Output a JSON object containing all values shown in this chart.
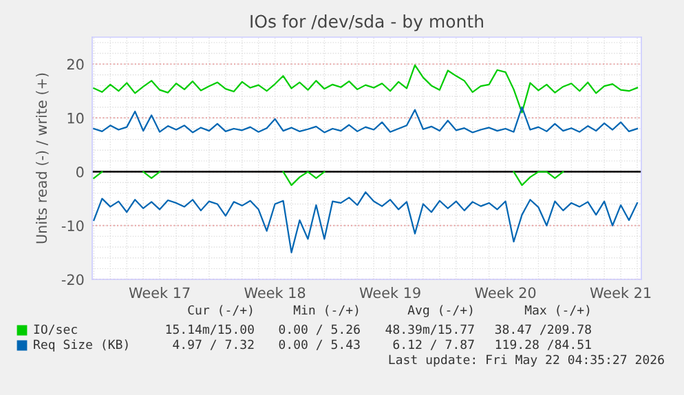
{
  "chart_data": {
    "type": "line",
    "title": "IOs for /dev/sda - by month",
    "ylabel": "Units read (-) / write (+)",
    "categories": [
      null,
      null,
      null,
      null,
      null,
      null,
      null,
      null,
      "Week 17",
      null,
      null,
      null,
      null,
      null,
      null,
      null,
      null,
      null,
      null,
      null,
      null,
      null,
      "Week 18",
      null,
      null,
      null,
      null,
      null,
      null,
      null,
      null,
      null,
      null,
      null,
      null,
      null,
      "Week 19",
      null,
      null,
      null,
      null,
      null,
      null,
      null,
      null,
      null,
      null,
      null,
      null,
      null,
      "Week 20",
      null,
      null,
      null,
      null,
      null,
      null,
      null,
      null,
      null,
      null,
      null,
      null,
      null,
      "Week 21",
      null,
      null
    ],
    "series": [
      {
        "name": "IO/sec",
        "color": "#00cc00",
        "values": [
          15.5,
          14.8,
          16.2,
          15.0,
          16.5,
          14.6,
          15.8,
          16.9,
          15.2,
          14.7,
          16.4,
          15.3,
          16.8,
          15.1,
          15.9,
          16.6,
          15.4,
          14.9,
          16.7,
          15.6,
          16.1,
          15.0,
          16.3,
          17.8,
          15.5,
          16.6,
          15.2,
          16.9,
          15.4,
          16.2,
          15.7,
          16.8,
          15.3,
          16.1,
          15.6,
          16.4,
          15.0,
          16.7,
          15.5,
          19.8,
          17.5,
          16.0,
          15.2,
          18.8,
          17.8,
          16.9,
          14.8,
          15.9,
          16.2,
          18.9,
          18.5,
          15.3,
          11.0,
          16.5,
          15.1,
          16.2,
          14.7,
          15.8,
          16.4,
          15.0,
          16.6,
          14.6,
          15.9,
          16.3,
          15.2,
          15.0,
          15.6
        ]
      },
      {
        "color": "#00cc00",
        "values": [
          -1.2,
          0,
          null,
          null,
          null,
          null,
          0,
          -1.2,
          0,
          null,
          null,
          null,
          null,
          null,
          null,
          null,
          null,
          null,
          null,
          null,
          null,
          null,
          null,
          0,
          -2.5,
          -1.0,
          0,
          -1.2,
          0,
          null,
          null,
          null,
          null,
          null,
          null,
          null,
          null,
          null,
          null,
          null,
          null,
          null,
          null,
          null,
          null,
          null,
          null,
          null,
          null,
          null,
          null,
          0,
          -2.5,
          -1.0,
          0,
          0,
          -1.2,
          0,
          null,
          null,
          null,
          null,
          null,
          null,
          null,
          null,
          null
        ]
      },
      {
        "name": "Req Size (KB)",
        "color": "#0066b3",
        "values": [
          8.0,
          7.5,
          8.6,
          7.8,
          8.3,
          11.2,
          7.6,
          10.5,
          7.4,
          8.5,
          7.8,
          8.6,
          7.3,
          8.2,
          7.6,
          8.9,
          7.5,
          8.0,
          7.7,
          8.3,
          7.4,
          8.1,
          9.8,
          7.6,
          8.2,
          7.5,
          7.9,
          8.4,
          7.3,
          8.0,
          7.6,
          8.7,
          7.5,
          8.3,
          7.8,
          9.2,
          7.4,
          8.0,
          8.6,
          11.5,
          7.9,
          8.4,
          7.6,
          9.5,
          7.7,
          8.1,
          7.3,
          7.8,
          8.2,
          7.6,
          8.0,
          7.4,
          12.0,
          7.8,
          8.3,
          7.5,
          8.9,
          7.6,
          8.1,
          7.4,
          8.5,
          7.6,
          9.0,
          7.8,
          9.2,
          7.5,
          8.0
        ]
      },
      {
        "color": "#0066b3",
        "values": [
          -9.0,
          -5.0,
          -6.5,
          -5.5,
          -7.5,
          -5.2,
          -6.8,
          -5.6,
          -7.0,
          -5.3,
          -5.8,
          -6.5,
          -5.2,
          -7.2,
          -5.5,
          -6.0,
          -8.2,
          -5.6,
          -6.3,
          -5.4,
          -7.0,
          -11.0,
          -6.0,
          -5.4,
          -15.0,
          -9.0,
          -12.5,
          -6.2,
          -12.5,
          -5.5,
          -5.8,
          -4.8,
          -6.2,
          -3.8,
          -5.5,
          -6.4,
          -5.2,
          -7.0,
          -5.6,
          -11.5,
          -6.0,
          -7.5,
          -5.4,
          -6.8,
          -5.5,
          -7.2,
          -5.6,
          -6.4,
          -5.8,
          -7.0,
          -5.5,
          -13.0,
          -8.0,
          -5.2,
          -6.6,
          -10.0,
          -5.5,
          -7.2,
          -5.8,
          -6.5,
          -5.6,
          -8.0,
          -5.5,
          -10.0,
          -6.2,
          -9.0,
          -5.8
        ]
      }
    ],
    "ylim": [
      -20,
      25
    ],
    "yticks": [
      -20,
      -10,
      0,
      10,
      20
    ],
    "ref_lines": [
      {
        "axis": "y",
        "value": 0,
        "color": "#000000"
      }
    ],
    "grid": true,
    "legend": "bottom",
    "marker": "none",
    "line_style": "solid",
    "annotations": [
      "Cur (-/+)",
      "Min (-/+)",
      "Avg (-/+)",
      "Max (-/+)",
      "15.14m/15.00",
      "0.00 / 5.26",
      "48.39m/15.77",
      "38.47 /209.78",
      "4.97 / 7.32",
      "0.00 / 5.43",
      "6.12 / 7.87",
      "119.28 /84.51",
      "Last update: Fri May 22 04:35:27 2026"
    ]
  }
}
